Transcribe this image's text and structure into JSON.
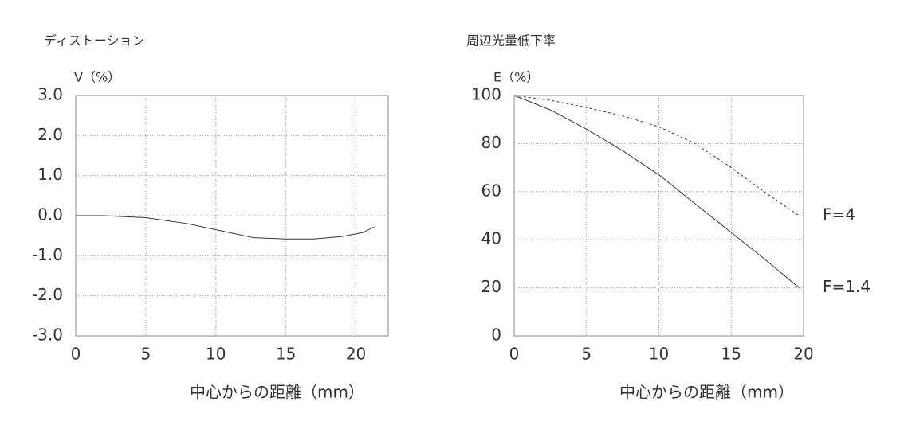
{
  "chart_data": [
    {
      "type": "line",
      "title": "ディストーション",
      "y_label": "V（%）",
      "x_label": "中心からの距離（mm）",
      "x": [
        0,
        2,
        5,
        8,
        10,
        12.7,
        15,
        17,
        19,
        20.5,
        21.3
      ],
      "values": [
        0.0,
        0.0,
        -0.05,
        -0.2,
        -0.35,
        -0.55,
        -0.58,
        -0.58,
        -0.52,
        -0.42,
        -0.28
      ],
      "color": "#333333",
      "xlim": [
        0,
        22.3
      ],
      "xticks": [
        0,
        5,
        10,
        15,
        20
      ],
      "ylim": [
        -3,
        3
      ],
      "yticks": [
        {
          "value": -3,
          "label": "-3.0"
        },
        {
          "value": -2,
          "label": "-2.0"
        },
        {
          "value": -1,
          "label": "-1.0"
        },
        {
          "value": 0,
          "label": "0.0"
        },
        {
          "value": 1,
          "label": "1.0"
        },
        {
          "value": 2,
          "label": "2.0"
        },
        {
          "value": 3,
          "label": "3.0"
        }
      ],
      "grid": true
    },
    {
      "type": "line",
      "title": "周辺光量低下率",
      "y_label": "E（%）",
      "x_label": "中心からの距離（mm）",
      "series": [
        {
          "name": "F=4",
          "color": "#333333",
          "dashed": true,
          "x": [
            0,
            2.5,
            5,
            7.5,
            10,
            12.5,
            15,
            17.5,
            19.7
          ],
          "values": [
            100,
            98,
            95,
            91.5,
            87,
            80,
            70,
            59,
            50
          ]
        },
        {
          "name": "F=1.4",
          "color": "#333333",
          "dashed": false,
          "x": [
            0,
            2.5,
            5,
            7.5,
            10,
            12.5,
            15,
            17.5,
            19.7
          ],
          "values": [
            100,
            94,
            86,
            77,
            67,
            55,
            43,
            31,
            20
          ]
        }
      ],
      "xlim": [
        0,
        20
      ],
      "xticks": [
        0,
        5,
        10,
        15,
        20
      ],
      "ylim": [
        0,
        100
      ],
      "yticks": [
        0,
        20,
        40,
        60,
        80,
        100
      ],
      "grid": true
    }
  ]
}
